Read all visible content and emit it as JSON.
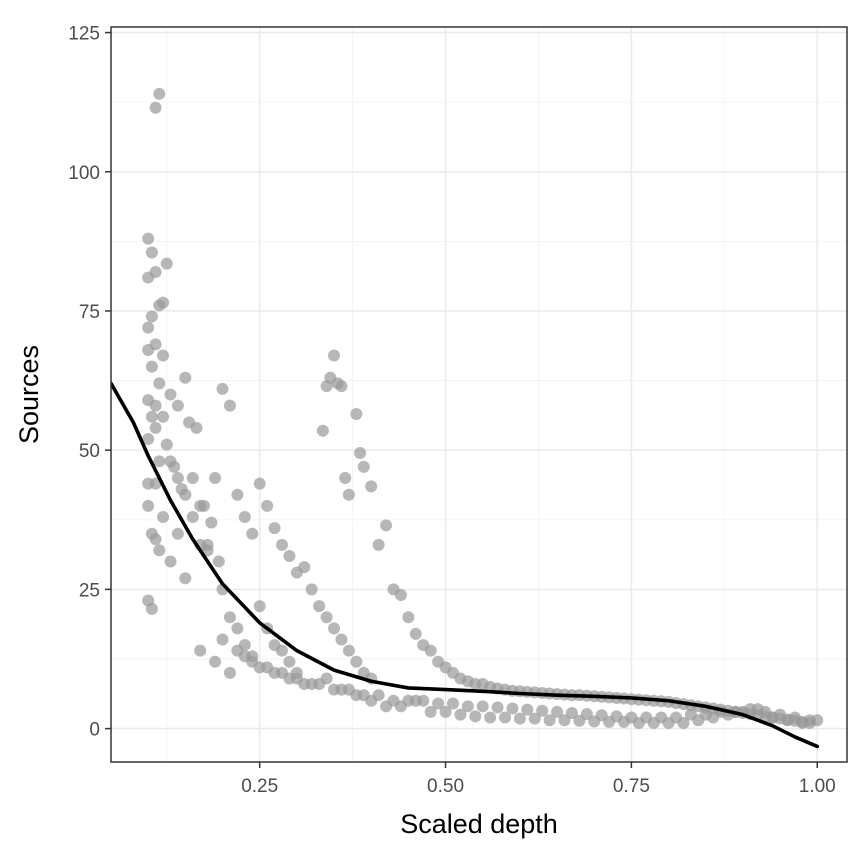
{
  "chart_data": {
    "type": "scatter",
    "title": "",
    "xlabel": "Scaled depth",
    "ylabel": "Sources",
    "xlim": [
      0.05,
      1.04
    ],
    "ylim": [
      -6,
      126
    ],
    "x_ticks": [
      0.25,
      0.5,
      0.75,
      1.0
    ],
    "x_tick_labels": [
      "0.25",
      "0.50",
      "0.75",
      "1.00"
    ],
    "y_ticks": [
      0,
      25,
      50,
      75,
      100,
      125
    ],
    "y_tick_labels": [
      "0",
      "25",
      "50",
      "75",
      "100",
      "125"
    ],
    "grid": true,
    "point_color": "#999999",
    "point_opacity": 0.7,
    "line_color": "#000000",
    "series": [
      {
        "name": "observations",
        "kind": "scatter",
        "x": [
          0.115,
          0.11,
          0.1,
          0.105,
          0.125,
          0.11,
          0.1,
          0.115,
          0.12,
          0.105,
          0.1,
          0.11,
          0.12,
          0.1,
          0.105,
          0.115,
          0.1,
          0.11,
          0.12,
          0.105,
          0.11,
          0.1,
          0.125,
          0.115,
          0.1,
          0.11,
          0.1,
          0.12,
          0.105,
          0.11,
          0.115,
          0.1,
          0.105,
          0.13,
          0.14,
          0.15,
          0.16,
          0.13,
          0.14,
          0.17,
          0.15,
          0.18,
          0.135,
          0.145,
          0.155,
          0.165,
          0.175,
          0.185,
          0.195,
          0.13,
          0.14,
          0.15,
          0.16,
          0.17,
          0.2,
          0.21,
          0.19,
          0.18,
          0.22,
          0.23,
          0.24,
          0.25,
          0.2,
          0.21,
          0.22,
          0.23,
          0.24,
          0.26,
          0.27,
          0.28,
          0.29,
          0.3,
          0.25,
          0.26,
          0.27,
          0.28,
          0.29,
          0.3,
          0.31,
          0.32,
          0.33,
          0.34,
          0.35,
          0.36,
          0.37,
          0.38,
          0.39,
          0.4,
          0.335,
          0.34,
          0.345,
          0.35,
          0.355,
          0.36,
          0.365,
          0.37,
          0.38,
          0.385,
          0.39,
          0.4,
          0.41,
          0.42,
          0.43,
          0.44,
          0.45,
          0.46,
          0.47,
          0.48,
          0.49,
          0.5,
          0.51,
          0.52,
          0.53,
          0.54,
          0.55,
          0.56,
          0.57,
          0.58,
          0.59,
          0.6,
          0.61,
          0.62,
          0.63,
          0.64,
          0.65,
          0.66,
          0.67,
          0.68,
          0.69,
          0.7,
          0.71,
          0.72,
          0.73,
          0.74,
          0.75,
          0.76,
          0.77,
          0.78,
          0.79,
          0.8,
          0.81,
          0.82,
          0.83,
          0.84,
          0.85,
          0.86,
          0.87,
          0.88,
          0.89,
          0.9,
          0.91,
          0.92,
          0.93,
          0.94,
          0.95,
          0.96,
          0.97,
          0.98,
          0.99,
          1.0,
          0.2,
          0.22,
          0.24,
          0.26,
          0.28,
          0.3,
          0.32,
          0.34,
          0.36,
          0.38,
          0.4,
          0.42,
          0.44,
          0.46,
          0.48,
          0.5,
          0.52,
          0.54,
          0.56,
          0.58,
          0.6,
          0.62,
          0.64,
          0.66,
          0.68,
          0.7,
          0.72,
          0.74,
          0.76,
          0.78,
          0.8,
          0.82,
          0.84,
          0.86,
          0.88,
          0.9,
          0.92,
          0.94,
          0.96,
          0.98,
          0.17,
          0.19,
          0.21,
          0.23,
          0.25,
          0.27,
          0.29,
          0.31,
          0.33,
          0.35,
          0.37,
          0.39,
          0.41,
          0.43,
          0.45,
          0.47,
          0.49,
          0.51,
          0.53,
          0.55,
          0.57,
          0.59,
          0.61,
          0.63,
          0.65,
          0.67,
          0.69,
          0.71,
          0.73,
          0.75,
          0.77,
          0.79,
          0.81,
          0.83,
          0.85,
          0.87,
          0.89,
          0.91,
          0.93,
          0.95,
          0.97,
          0.99
        ],
        "y": [
          114,
          111.5,
          88,
          85.5,
          83.5,
          82,
          81,
          76,
          76.5,
          74,
          72,
          69,
          67,
          68,
          65,
          62,
          59,
          58,
          56,
          56,
          54,
          52,
          51,
          48,
          44,
          44,
          40,
          38,
          35,
          34,
          32,
          23,
          21.5,
          48,
          45,
          42,
          38,
          30,
          35,
          40,
          27,
          33,
          47,
          43,
          55,
          54,
          40,
          37,
          30,
          60,
          58,
          63,
          45,
          33,
          61,
          58,
          45,
          32,
          42,
          38,
          35,
          44,
          25,
          20,
          18,
          15,
          13,
          40,
          36,
          33,
          31,
          28,
          22,
          18,
          15,
          14,
          12,
          10,
          29,
          25,
          22,
          20,
          18,
          16,
          14,
          12,
          10,
          9,
          53.5,
          61.5,
          63,
          67,
          62,
          61.5,
          45,
          42,
          56.5,
          49.5,
          47,
          43.5,
          33,
          36.5,
          25,
          24,
          20,
          17,
          15,
          14,
          12,
          11,
          10,
          9,
          8.5,
          8,
          8,
          7.5,
          7.2,
          7,
          6.8,
          6.7,
          6.6,
          6.5,
          6.4,
          6.3,
          6.2,
          6.1,
          6,
          6,
          5.9,
          5.8,
          5.7,
          5.6,
          5.5,
          5.4,
          5.3,
          5.2,
          5.1,
          5,
          4.9,
          4.8,
          4.6,
          4.4,
          4.2,
          4,
          3.8,
          3.6,
          3.4,
          3.2,
          3,
          2.8,
          2.6,
          2.4,
          2.2,
          2,
          1.8,
          1.6,
          1.4,
          1.2,
          1,
          1.5,
          16,
          14,
          12,
          11,
          10,
          9,
          8,
          9,
          7,
          6,
          5,
          4,
          4,
          5,
          3,
          3,
          2.5,
          2.2,
          2,
          2,
          1.8,
          1.8,
          1.5,
          1.5,
          1.4,
          1.3,
          1.2,
          1.2,
          1,
          1,
          1,
          1,
          1.5,
          2,
          2.5,
          3,
          3.5,
          2,
          1.5,
          1,
          14,
          12,
          10,
          13,
          11,
          10,
          9,
          8,
          8,
          7,
          7,
          6,
          6,
          5,
          5,
          5,
          4.5,
          4.5,
          4,
          4,
          3.8,
          3.6,
          3.4,
          3.2,
          3,
          2.8,
          2.6,
          2.4,
          2.2,
          2,
          2,
          2,
          2,
          2.5,
          2.5,
          3,
          3,
          3.5,
          3,
          2.5,
          2,
          1.5
        ]
      },
      {
        "name": "smooth fit",
        "kind": "line",
        "x": [
          0.05,
          0.08,
          0.1,
          0.13,
          0.16,
          0.2,
          0.25,
          0.3,
          0.35,
          0.4,
          0.45,
          0.5,
          0.55,
          0.6,
          0.65,
          0.7,
          0.75,
          0.8,
          0.85,
          0.9,
          0.94,
          0.97,
          1.0
        ],
        "y": [
          62,
          55,
          49,
          41,
          34,
          26,
          19,
          14,
          10.5,
          8.5,
          7.3,
          7,
          6.7,
          6.3,
          6,
          5.8,
          5.5,
          5,
          4,
          2.5,
          0.5,
          -1.5,
          -3.2
        ]
      }
    ]
  }
}
